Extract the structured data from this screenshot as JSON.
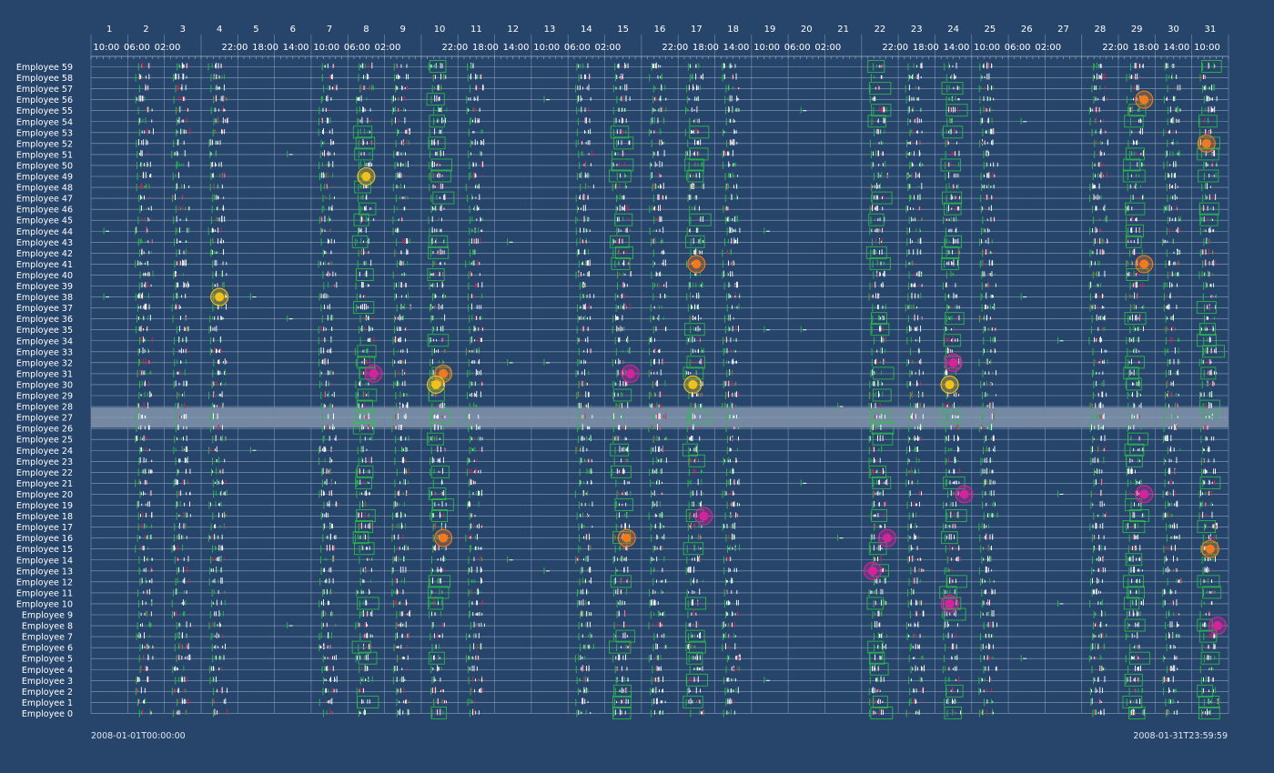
{
  "chart_data": {
    "type": "timeline",
    "days": [
      "1",
      "2",
      "3",
      "4",
      "5",
      "6",
      "7",
      "8",
      "9",
      "10",
      "11",
      "12",
      "13",
      "14",
      "15",
      "16",
      "17",
      "18",
      "19",
      "20",
      "21",
      "22",
      "23",
      "24",
      "25",
      "26",
      "27",
      "28",
      "29",
      "30",
      "31"
    ],
    "time_ticks": [
      "10:00",
      "06:00",
      "02:00",
      "22:00",
      "18:00",
      "14:00",
      "10:00",
      "06:00",
      "02:00",
      "22:00",
      "18:00",
      "14:00",
      "10:00",
      "06:00",
      "02:00",
      "22:00",
      "18:00",
      "14:00",
      "10:00",
      "06:00",
      "02:00",
      "22:00",
      "18:00",
      "14:00",
      "10:00",
      "06:00",
      "02:00",
      "22:00",
      "18:00",
      "14:00",
      "10:00"
    ],
    "employees": [
      "Employee 59",
      "Employee 58",
      "Employee 57",
      "Employee 56",
      "Employee 55",
      "Employee 54",
      "Employee 53",
      "Employee 52",
      "Employee 51",
      "Employee 50",
      "Employee 49",
      "Employee 48",
      "Employee 47",
      "Employee 46",
      "Employee 45",
      "Employee 44",
      "Employee 43",
      "Employee 42",
      "Employee 41",
      "Employee 40",
      "Employee 39",
      "Employee 38",
      "Employee 37",
      "Employee 36",
      "Employee 35",
      "Employee 34",
      "Employee 33",
      "Employee 32",
      "Employee 31",
      "Employee 30",
      "Employee 29",
      "Employee 28",
      "Employee 27",
      "Employee 26",
      "Employee 25",
      "Employee 24",
      "Employee 23",
      "Employee 22",
      "Employee 21",
      "Employee 20",
      "Employee 19",
      "Employee 18",
      "Employee 17",
      "Employee 16",
      "Employee 15",
      "Employee 14",
      "Employee 13",
      "Employee 12",
      "Employee 11",
      "Employee 10",
      "Employee 9",
      "Employee 8",
      "Employee 7",
      "Employee 6",
      "Employee 5",
      "Employee 4",
      "Employee 3",
      "Employee 2",
      "Employee 1",
      "Employee 0"
    ],
    "highlighted_employee": "Employee 27",
    "workdays": [
      2,
      3,
      4,
      7,
      8,
      9,
      10,
      11,
      14,
      15,
      16,
      17,
      18,
      22,
      23,
      24,
      25,
      28,
      29,
      30,
      31
    ],
    "box_days": [
      8,
      10,
      15,
      17,
      22,
      24,
      29,
      31
    ],
    "stray_activity": [
      {
        "employee": "Employee 44",
        "day": 1
      },
      {
        "employee": "Employee 38",
        "day": 1
      },
      {
        "employee": "Employee 38",
        "day": 5
      },
      {
        "employee": "Employee 24",
        "day": 5
      },
      {
        "employee": "Employee 51",
        "day": 6
      },
      {
        "employee": "Employee 36",
        "day": 6
      },
      {
        "employee": "Employee 8",
        "day": 6
      },
      {
        "employee": "Employee 56",
        "day": 13
      },
      {
        "employee": "Employee 43",
        "day": 12
      },
      {
        "employee": "Employee 32",
        "day": 12
      },
      {
        "employee": "Employee 32",
        "day": 13
      },
      {
        "employee": "Employee 14",
        "day": 12
      },
      {
        "employee": "Employee 13",
        "day": 13
      },
      {
        "employee": "Employee 55",
        "day": 20
      },
      {
        "employee": "Employee 44",
        "day": 19
      },
      {
        "employee": "Employee 35",
        "day": 19
      },
      {
        "employee": "Employee 35",
        "day": 20
      },
      {
        "employee": "Employee 21",
        "day": 20
      },
      {
        "employee": "Employee 28",
        "day": 21
      },
      {
        "employee": "Employee 16",
        "day": 21
      },
      {
        "employee": "Employee 3",
        "day": 19
      },
      {
        "employee": "Employee 54",
        "day": 26
      },
      {
        "employee": "Employee 38",
        "day": 26
      },
      {
        "employee": "Employee 5",
        "day": 26
      },
      {
        "employee": "Employee 34",
        "day": 27
      },
      {
        "employee": "Employee 20",
        "day": 27
      },
      {
        "employee": "Employee 10",
        "day": 27
      }
    ],
    "alerts": [
      {
        "employee": "Employee 56",
        "day": 29.2,
        "kind": "orange"
      },
      {
        "employee": "Employee 52",
        "day": 30.9,
        "kind": "orange"
      },
      {
        "employee": "Employee 49",
        "day": 8.0,
        "kind": "yellow"
      },
      {
        "employee": "Employee 41",
        "day": 17.0,
        "kind": "orange"
      },
      {
        "employee": "Employee 41",
        "day": 29.2,
        "kind": "orange"
      },
      {
        "employee": "Employee 38",
        "day": 4.0,
        "kind": "yellow"
      },
      {
        "employee": "Employee 32",
        "day": 24.0,
        "kind": "magenta"
      },
      {
        "employee": "Employee 31",
        "day": 8.2,
        "kind": "magenta"
      },
      {
        "employee": "Employee 31",
        "day": 10.1,
        "kind": "orange"
      },
      {
        "employee": "Employee 31",
        "day": 15.2,
        "kind": "magenta"
      },
      {
        "employee": "Employee 30",
        "day": 9.9,
        "kind": "yellow"
      },
      {
        "employee": "Employee 30",
        "day": 16.9,
        "kind": "yellow"
      },
      {
        "employee": "Employee 30",
        "day": 23.9,
        "kind": "yellow"
      },
      {
        "employee": "Employee 20",
        "day": 24.3,
        "kind": "magenta"
      },
      {
        "employee": "Employee 20",
        "day": 29.2,
        "kind": "magenta"
      },
      {
        "employee": "Employee 18",
        "day": 17.2,
        "kind": "magenta"
      },
      {
        "employee": "Employee 16",
        "day": 10.1,
        "kind": "orange"
      },
      {
        "employee": "Employee 16",
        "day": 15.1,
        "kind": "orange"
      },
      {
        "employee": "Employee 16",
        "day": 22.2,
        "kind": "magenta"
      },
      {
        "employee": "Employee 15",
        "day": 31.0,
        "kind": "orange"
      },
      {
        "employee": "Employee 13",
        "day": 21.8,
        "kind": "magenta"
      },
      {
        "employee": "Employee 10",
        "day": 23.9,
        "kind": "magenta"
      },
      {
        "employee": "Employee 8",
        "day": 31.2,
        "kind": "magenta"
      }
    ],
    "range_start": "2008-01-01T00:00:00",
    "range_end": "2008-01-31T23:59:59",
    "colors": {
      "background": "#27456b",
      "activity": "#ffffff",
      "accent_green": "#26b84a",
      "accent_red": "#d0284f",
      "box": "#2ec24d",
      "highlight_row": "#b7c2d0",
      "alert_yellow": "#f2c21b",
      "alert_orange": "#f07a1e",
      "alert_magenta": "#d6239c"
    }
  }
}
